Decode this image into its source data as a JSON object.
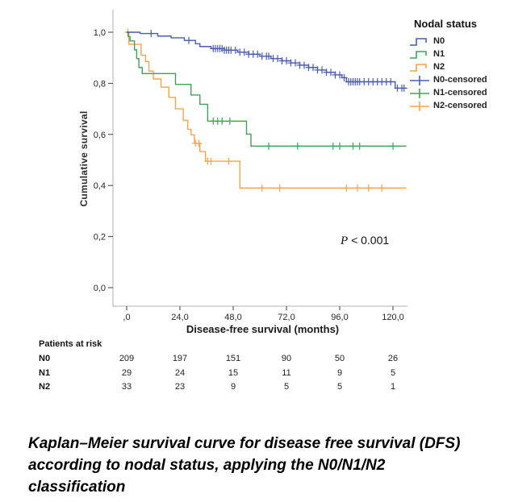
{
  "chart_data": {
    "type": "line",
    "subtype": "kaplan-meier-step",
    "title": "",
    "xlabel": "Disease-free survival (months)",
    "ylabel": "Cumulative survival",
    "xlim": [
      0,
      126
    ],
    "ylim": [
      0.0,
      1.0
    ],
    "grid": false,
    "legend_position": "top-right-outside",
    "x_ticks": {
      "values": [
        0,
        24,
        48,
        72,
        96,
        120
      ],
      "labels": [
        ",0",
        "24,0",
        "48,0",
        "72,0",
        "96,0",
        "120,0"
      ]
    },
    "y_ticks": {
      "values": [
        0.0,
        0.2,
        0.4,
        0.6,
        0.8,
        1.0
      ],
      "labels": [
        "0,0",
        "0,2",
        "0,4",
        "0,6",
        "0,8",
        "1,0"
      ]
    },
    "series": [
      {
        "name": "N2",
        "color": "#F9A348",
        "end": 126,
        "steps": [
          [
            0,
            1.0
          ],
          [
            1,
            0.953
          ],
          [
            6.5,
            0.91
          ],
          [
            8.5,
            0.885
          ],
          [
            10,
            0.848
          ],
          [
            12,
            0.817
          ],
          [
            15.5,
            0.785
          ],
          [
            19,
            0.745
          ],
          [
            22,
            0.7
          ],
          [
            25.5,
            0.655
          ],
          [
            27.5,
            0.62
          ],
          [
            29,
            0.598
          ],
          [
            30.5,
            0.565
          ],
          [
            33,
            0.533
          ],
          [
            35.5,
            0.495
          ],
          [
            51,
            0.39
          ]
        ],
        "censored": [
          0.5,
          31,
          32.5,
          36.5,
          38,
          46,
          61,
          69,
          99,
          104,
          109,
          115
        ]
      },
      {
        "name": "N1",
        "color": "#3DA35B",
        "end": 126,
        "steps": [
          [
            0,
            1.0
          ],
          [
            0.7,
            0.983
          ],
          [
            1.5,
            0.966
          ],
          [
            3.5,
            0.931
          ],
          [
            4.5,
            0.897
          ],
          [
            5.5,
            0.862
          ],
          [
            7,
            0.838
          ],
          [
            22,
            0.796
          ],
          [
            29,
            0.754
          ],
          [
            33,
            0.718
          ],
          [
            36.5,
            0.652
          ],
          [
            54,
            0.601
          ],
          [
            56,
            0.554
          ]
        ],
        "censored": [
          39,
          41,
          43,
          46.5,
          64,
          77,
          93,
          96,
          102,
          105,
          120
        ]
      },
      {
        "name": "N0",
        "color": "#4A5CB0",
        "end": 126,
        "steps": [
          [
            0,
            1.0
          ],
          [
            6,
            0.995
          ],
          [
            14,
            0.985
          ],
          [
            20,
            0.978
          ],
          [
            26,
            0.968
          ],
          [
            31,
            0.955
          ],
          [
            33,
            0.944
          ],
          [
            38,
            0.936
          ],
          [
            44,
            0.93
          ],
          [
            50,
            0.922
          ],
          [
            55,
            0.914
          ],
          [
            60,
            0.906
          ],
          [
            65,
            0.897
          ],
          [
            70,
            0.888
          ],
          [
            74,
            0.88
          ],
          [
            78,
            0.871
          ],
          [
            82,
            0.862
          ],
          [
            86,
            0.852
          ],
          [
            90,
            0.843
          ],
          [
            94,
            0.833
          ],
          [
            97,
            0.822
          ],
          [
            99,
            0.806
          ],
          [
            121,
            0.781
          ]
        ],
        "censored": [
          11,
          28,
          39,
          40,
          41,
          42,
          43,
          44,
          45,
          46,
          47,
          49,
          51,
          53,
          55,
          57,
          59,
          61,
          63,
          64,
          66,
          68,
          70,
          72,
          74,
          76,
          78,
          80,
          82,
          84,
          86,
          88,
          90,
          92,
          94,
          96,
          98,
          100,
          101,
          102,
          103,
          104,
          105,
          107,
          109,
          111,
          113,
          115,
          117,
          119,
          122,
          124,
          125
        ]
      }
    ],
    "annotation": {
      "p_label": "P",
      "p_value": "< 0.001"
    }
  },
  "legend": {
    "title": "Nodal status",
    "items": [
      {
        "label": "N0",
        "symbol": "line",
        "color": "#4A5CB0"
      },
      {
        "label": "N1",
        "symbol": "line",
        "color": "#3DA35B"
      },
      {
        "label": "N2",
        "symbol": "line",
        "color": "#F9A348"
      },
      {
        "label": "N0-censored",
        "symbol": "censor",
        "color": "#4A5CB0"
      },
      {
        "label": "N1-censored",
        "symbol": "censor",
        "color": "#3DA35B"
      },
      {
        "label": "N2-censored",
        "symbol": "censor",
        "color": "#F9A348"
      }
    ]
  },
  "risk_table": {
    "title": "Patients at risk",
    "time_points": [
      0,
      24,
      48,
      72,
      96,
      120
    ],
    "rows": [
      {
        "label": "N0",
        "values": [
          "209",
          "197",
          "151",
          "90",
          "50",
          "26"
        ]
      },
      {
        "label": "N1",
        "values": [
          "29",
          "24",
          "15",
          "11",
          "9",
          "5"
        ]
      },
      {
        "label": "N2",
        "values": [
          "33",
          "23",
          "9",
          "5",
          "5",
          "1"
        ]
      }
    ]
  },
  "caption_lines": [
    "Kaplan–Meier survival curve for disease free survival (DFS)",
    "according to nodal status, applying the N0/N1/N2",
    "classification"
  ],
  "colors": {
    "axis": "#bfbfbf",
    "tick": "#3c3c3c",
    "tick_text": "#262626",
    "background": "#ffffff"
  }
}
